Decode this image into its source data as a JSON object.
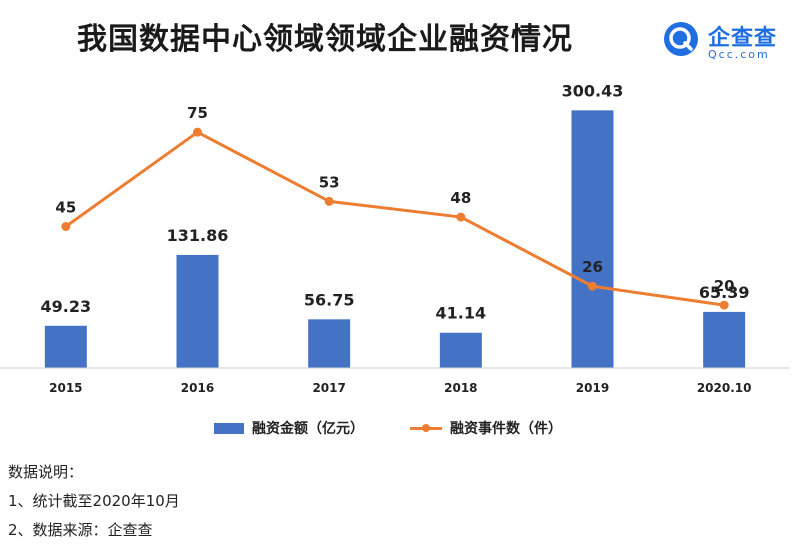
{
  "title": "我国数据中心领域领域企业融资情况",
  "logo": {
    "name": "企查查",
    "sub": "Qcc.com"
  },
  "chart_data": {
    "type": "bar",
    "categories": [
      "2015",
      "2016",
      "2017",
      "2018",
      "2019",
      "2020.10"
    ],
    "series": [
      {
        "name": "融资金额（亿元）",
        "type": "bar",
        "values": [
          49.23,
          131.86,
          56.75,
          41.14,
          300.43,
          65.39
        ],
        "color": "#4472c4"
      },
      {
        "name": "融资事件数（件）",
        "type": "line",
        "values": [
          45,
          75,
          53,
          48,
          26,
          20
        ],
        "color": "#ed7d31"
      }
    ],
    "bar_ylim": [
      0,
      330
    ],
    "line_ylim": [
      0,
      90
    ],
    "legend_position": "bottom",
    "grid": false
  },
  "notes": {
    "heading": "数据说明：",
    "items": [
      "1、统计截至2020年10月",
      "2、数据来源：企查查"
    ]
  }
}
